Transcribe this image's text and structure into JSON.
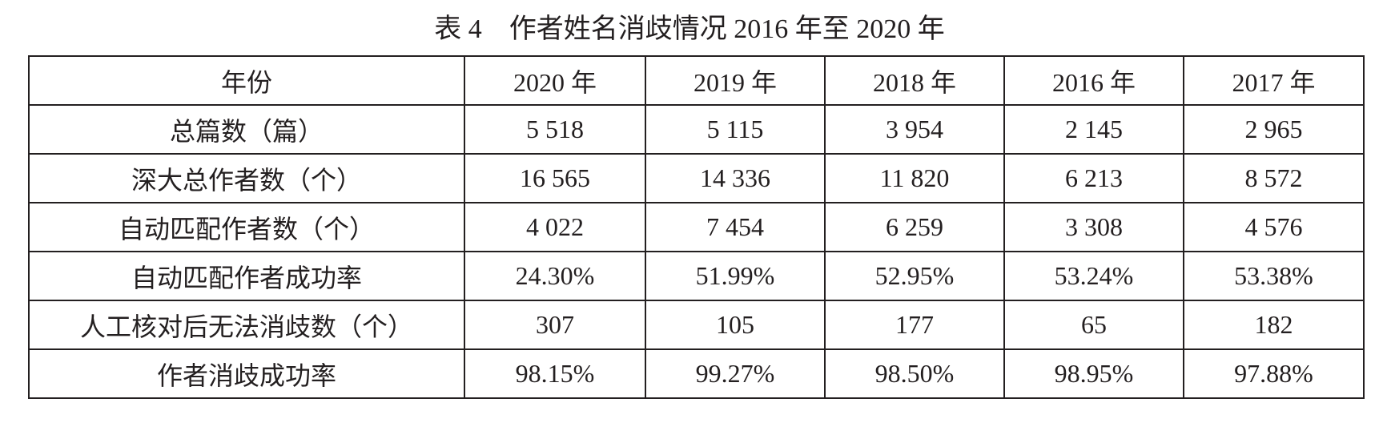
{
  "title": "表 4　作者姓名消歧情况 2016 年至 2020 年",
  "table": {
    "header": [
      "年份",
      "2020 年",
      "2019 年",
      "2018 年",
      "2016 年",
      "2017 年"
    ],
    "rows": [
      [
        "总篇数（篇）",
        "5 518",
        "5 115",
        "3 954",
        "2 145",
        "2 965"
      ],
      [
        "深大总作者数（个）",
        "16 565",
        "14 336",
        "11 820",
        "6 213",
        "8 572"
      ],
      [
        "自动匹配作者数（个）",
        "4 022",
        "7 454",
        "6 259",
        "3 308",
        "4 576"
      ],
      [
        "自动匹配作者成功率",
        "24.30%",
        "51.99%",
        "52.95%",
        "53.24%",
        "53.38%"
      ],
      [
        "人工核对后无法消歧数（个）",
        "307",
        "105",
        "177",
        "65",
        "182"
      ],
      [
        "作者消歧成功率",
        "98.15%",
        "99.27%",
        "98.50%",
        "98.95%",
        "97.88%"
      ]
    ]
  }
}
